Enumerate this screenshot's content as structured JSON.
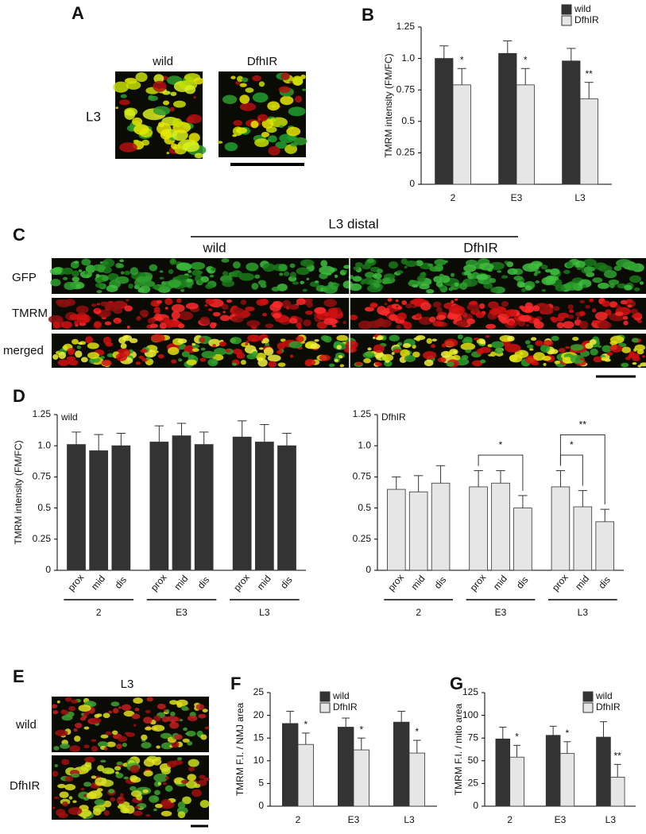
{
  "figure_panels": {
    "A": {
      "letter": "A",
      "col1": "wild",
      "col2": "DfhIR",
      "row": "L3"
    },
    "C": {
      "letter": "C",
      "header": "L3 distal",
      "col1": "wild",
      "col2": "DfhIR",
      "rows": [
        "GFP",
        "TMRM",
        "merged"
      ]
    },
    "E": {
      "letter": "E",
      "header": "L3",
      "rows": [
        "wild",
        "DfhIR"
      ]
    }
  },
  "chart_data": [
    {
      "type": "bar",
      "panel": "B",
      "y_label": "TMRM intensity (FM/FC)",
      "categories": [
        "2",
        "E3",
        "L3"
      ],
      "series": [
        {
          "name": "wild",
          "color": "#333333",
          "values": [
            1.0,
            1.04,
            0.98
          ],
          "errors": [
            0.1,
            0.1,
            0.1
          ]
        },
        {
          "name": "DfhIR",
          "color": "#e6e6e6",
          "values": [
            0.79,
            0.79,
            0.68
          ],
          "errors": [
            0.13,
            0.13,
            0.13
          ],
          "significance": [
            "*",
            "*",
            "**"
          ]
        }
      ],
      "ylim": [
        0,
        1.25
      ],
      "yticks": [
        0,
        0.25,
        0.5,
        0.75,
        {
          "value": 1,
          "label": "1.0"
        },
        1.25
      ],
      "legend": "upper right"
    },
    {
      "type": "bar",
      "panel": "D",
      "y_label": "TMRM intensity (FM/FC)",
      "categories": [
        "prox",
        "mid",
        "dis",
        "prox",
        "mid",
        "dis",
        "prox",
        "mid",
        "dis"
      ],
      "groups": [
        "2",
        "E3",
        "L3"
      ],
      "series": [
        {
          "name": "wild",
          "color": "#333333",
          "values": [
            1.01,
            0.96,
            1.0,
            1.03,
            1.08,
            1.01,
            1.07,
            1.03,
            1.0
          ],
          "errors": [
            0.1,
            0.13,
            0.1,
            0.13,
            0.1,
            0.1,
            0.13,
            0.14,
            0.1
          ]
        }
      ],
      "ylim": [
        0,
        1.25
      ],
      "yticks": [
        0,
        0.25,
        0.5,
        0.75,
        {
          "value": 1,
          "label": "1.0"
        },
        1.25
      ],
      "legend": "upper left"
    },
    {
      "type": "bar",
      "categories": [
        "prox",
        "mid",
        "dis",
        "prox",
        "mid",
        "dis",
        "prox",
        "mid",
        "dis"
      ],
      "groups": [
        "2",
        "E3",
        "L3"
      ],
      "series": [
        {
          "name": "DfhIR",
          "color": "#e6e6e6",
          "values": [
            0.65,
            0.63,
            0.7,
            0.67,
            0.7,
            0.5,
            0.67,
            0.51,
            0.39
          ],
          "errors": [
            0.1,
            0.13,
            0.14,
            0.13,
            0.1,
            0.1,
            0.13,
            0.13,
            0.1
          ]
        }
      ],
      "brackets": [
        {
          "from": 3,
          "to": 5,
          "text": "*"
        },
        {
          "from": 6,
          "to": 7,
          "text": "*"
        },
        {
          "from": 6,
          "to": 8,
          "text": "**"
        }
      ],
      "ylim": [
        0,
        1.25
      ],
      "yticks": [
        0,
        0.25,
        0.5,
        0.75,
        {
          "value": 1,
          "label": "1.0"
        },
        1.25
      ],
      "legend": "upper left"
    },
    {
      "type": "bar",
      "panel": "F",
      "y_label": "TMRM F.I. / NMJ area",
      "categories": [
        "2",
        "E3",
        "L3"
      ],
      "series": [
        {
          "name": "wild",
          "color": "#333333",
          "values": [
            18.2,
            17.4,
            18.5
          ],
          "errors": [
            2.7,
            2.0,
            2.4
          ]
        },
        {
          "name": "DfhIR",
          "color": "#e6e6e6",
          "values": [
            13.6,
            12.4,
            11.7
          ],
          "errors": [
            2.5,
            2.6,
            2.8
          ],
          "significance": [
            "*",
            "*",
            "*"
          ]
        }
      ],
      "ylim": [
        0,
        25
      ],
      "yticks": [
        0,
        5,
        10,
        15,
        20,
        25
      ],
      "legend": "upper right"
    },
    {
      "type": "bar",
      "panel": "G",
      "y_label": "TMRM F.I. / mito area",
      "categories": [
        "2",
        "E3",
        "L3"
      ],
      "series": [
        {
          "name": "wild",
          "color": "#333333",
          "values": [
            74,
            78,
            76
          ],
          "errors": [
            13,
            10,
            17
          ]
        },
        {
          "name": "DfhIR",
          "color": "#e6e6e6",
          "values": [
            54,
            58,
            32
          ],
          "errors": [
            13,
            13,
            14
          ],
          "significance": [
            "*",
            "*",
            "**"
          ]
        }
      ],
      "ylim": [
        0,
        125
      ],
      "yticks": [
        0,
        25,
        50,
        75,
        100,
        125
      ],
      "legend": "upper right"
    }
  ]
}
